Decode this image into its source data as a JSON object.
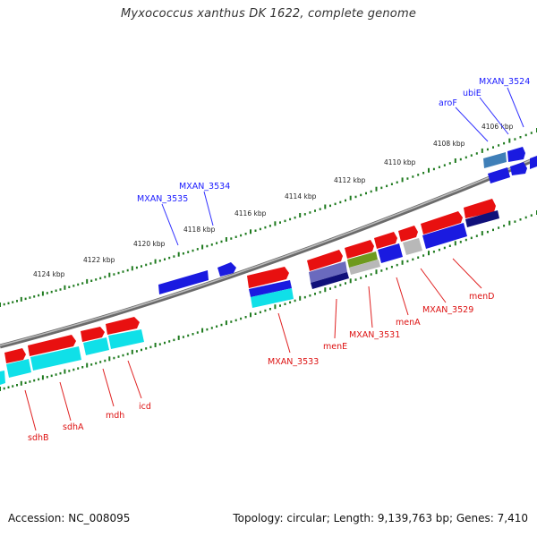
{
  "title": "Myxococcus xanthus DK 1622, complete genome",
  "footer": {
    "accession": "Accession: NC_008095",
    "topology": "Topology: circular; Length: 9,139,763 bp; Genes: 7,410"
  },
  "colors": {
    "backbone": "#8a8a8a",
    "tick": "#1e7a1e",
    "gene_red": "#e81010",
    "gene_blue": "#1a1ae0",
    "gene_cyan": "#10e0e8",
    "gene_navy": "#10107a",
    "gene_gray": "#b8b8b8",
    "gene_olive": "#6e9a1e",
    "gene_slate": "#6a6abe",
    "gene_steel": "#3f7fb8",
    "label_blue": "#1a1aff",
    "label_red": "#dd1111"
  },
  "scale_labels": [
    "4106 kbp",
    "4108 kbp",
    "4110 kbp",
    "4112 kbp",
    "4114 kbp",
    "4116 kbp",
    "4118 kbp",
    "4120 kbp",
    "4122 kbp",
    "4124 kbp"
  ],
  "labels": {
    "MXAN_3524": "MXAN_3524",
    "ubiE": "ubiE",
    "aroF": "aroF",
    "MXAN_3534": "MXAN_3534",
    "MXAN_3535": "MXAN_3535",
    "menD": "menD",
    "MXAN_3529": "MXAN_3529",
    "menA": "menA",
    "MXAN_3531": "MXAN_3531",
    "menE": "menE",
    "MXAN_3533": "MXAN_3533",
    "icd": "icd",
    "mdh": "mdh",
    "sdhA": "sdhA",
    "sdhB": "sdhB"
  }
}
